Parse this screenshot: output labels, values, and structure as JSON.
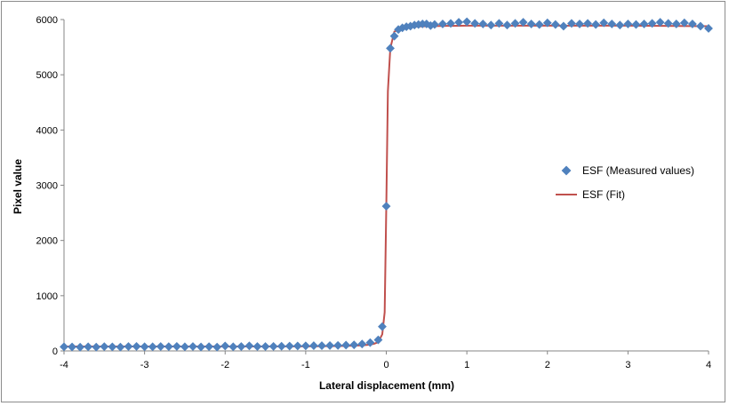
{
  "chart_data": {
    "type": "scatter",
    "title": "",
    "xlabel": "Lateral displacement (mm)",
    "ylabel": "Pixel value",
    "xlim": [
      -4,
      4
    ],
    "ylim": [
      0,
      6000
    ],
    "x_ticks": [
      -4,
      -3,
      -2,
      -1,
      0,
      1,
      2,
      3,
      4
    ],
    "y_ticks": [
      0,
      1000,
      2000,
      3000,
      4000,
      5000,
      6000
    ],
    "x_tick_labels": [
      "-4",
      "-3",
      "-2",
      "-1",
      "0",
      "1",
      "2",
      "3",
      "4"
    ],
    "y_tick_labels": [
      "0",
      "1000",
      "2000",
      "3000",
      "4000",
      "5000",
      "6000"
    ],
    "grid": false,
    "legend_position": "right",
    "series": [
      {
        "name": "ESF (Measured values)",
        "kind": "scatter",
        "marker": "diamond",
        "color": "#4f81bd",
        "x": [
          -4.0,
          -3.9,
          -3.8,
          -3.7,
          -3.6,
          -3.5,
          -3.4,
          -3.3,
          -3.2,
          -3.1,
          -3.0,
          -2.9,
          -2.8,
          -2.7,
          -2.6,
          -2.5,
          -2.4,
          -2.3,
          -2.2,
          -2.1,
          -2.0,
          -1.9,
          -1.8,
          -1.7,
          -1.6,
          -1.5,
          -1.4,
          -1.3,
          -1.2,
          -1.1,
          -1.0,
          -0.9,
          -0.8,
          -0.7,
          -0.6,
          -0.5,
          -0.4,
          -0.3,
          -0.2,
          -0.1,
          -0.05,
          0.0,
          0.05,
          0.1,
          0.15,
          0.2,
          0.25,
          0.3,
          0.35,
          0.4,
          0.45,
          0.5,
          0.55,
          0.6,
          0.7,
          0.8,
          0.9,
          1.0,
          1.1,
          1.2,
          1.3,
          1.4,
          1.5,
          1.6,
          1.7,
          1.8,
          1.9,
          2.0,
          2.1,
          2.2,
          2.3,
          2.4,
          2.5,
          2.6,
          2.7,
          2.8,
          2.9,
          3.0,
          3.1,
          3.2,
          3.3,
          3.4,
          3.5,
          3.6,
          3.7,
          3.8,
          3.9,
          4.0
        ],
        "y": [
          75,
          72,
          68,
          75,
          70,
          78,
          74,
          70,
          80,
          82,
          76,
          75,
          80,
          78,
          82,
          75,
          80,
          72,
          78,
          70,
          90,
          75,
          80,
          92,
          80,
          80,
          82,
          85,
          88,
          90,
          92,
          95,
          95,
          98,
          100,
          105,
          110,
          125,
          150,
          200,
          440,
          2620,
          5480,
          5700,
          5820,
          5850,
          5870,
          5880,
          5900,
          5910,
          5920,
          5920,
          5890,
          5910,
          5920,
          5930,
          5950,
          5960,
          5930,
          5920,
          5900,
          5930,
          5900,
          5930,
          5950,
          5920,
          5910,
          5940,
          5910,
          5880,
          5930,
          5920,
          5930,
          5910,
          5940,
          5920,
          5900,
          5920,
          5910,
          5920,
          5930,
          5950,
          5930,
          5920,
          5940,
          5920,
          5880,
          5840
        ]
      },
      {
        "name": "ESF (Fit)",
        "kind": "line",
        "color": "#c0504d",
        "x": [
          -4.0,
          -3.0,
          -2.0,
          -1.0,
          -0.5,
          -0.3,
          -0.2,
          -0.15,
          -0.1,
          -0.05,
          -0.02,
          0.0,
          0.02,
          0.05,
          0.1,
          0.15,
          0.2,
          0.3,
          0.5,
          1.0,
          2.0,
          3.0,
          4.0
        ],
        "y": [
          80,
          80,
          80,
          82,
          90,
          100,
          115,
          130,
          160,
          300,
          700,
          2600,
          4700,
          5480,
          5780,
          5820,
          5850,
          5870,
          5880,
          5890,
          5890,
          5890,
          5880
        ]
      }
    ]
  }
}
